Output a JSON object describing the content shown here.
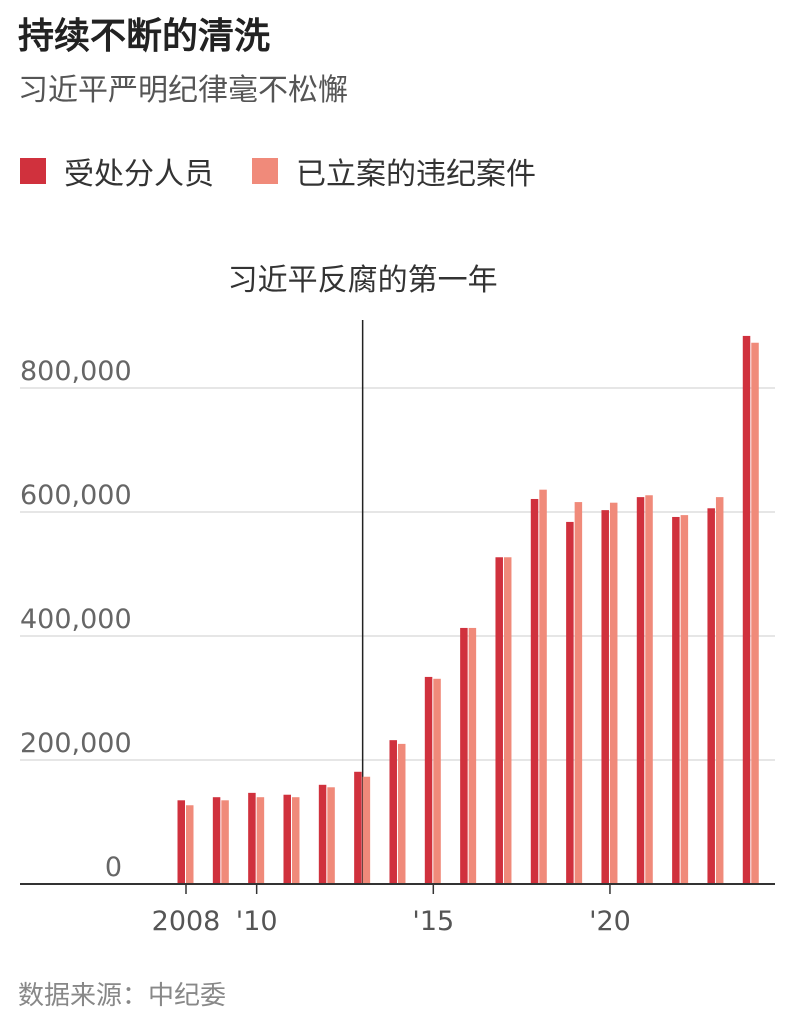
{
  "chart_data": {
    "type": "bar",
    "title": "持续不断的清洗",
    "subtitle": "习近平严明纪律毫不松懈",
    "annotation": "习近平反腐的第一年",
    "source": "数据来源：中纪委",
    "categories": [
      "2008",
      null,
      "'10",
      null,
      null,
      null,
      null,
      "'15",
      null,
      null,
      null,
      null,
      "'20",
      null,
      null,
      null,
      null
    ],
    "series": [
      {
        "name": "受处分人员",
        "color": "#d0313d",
        "values": [
          135000,
          140000,
          147000,
          144000,
          160000,
          181000,
          232000,
          334000,
          413000,
          527000,
          621000,
          584000,
          603000,
          624000,
          592000,
          606000,
          884000
        ]
      },
      {
        "name": "已立案的违纪案件",
        "color": "#f08a7a",
        "values": [
          127000,
          135000,
          140000,
          140000,
          156000,
          173000,
          226000,
          331000,
          413000,
          527000,
          636000,
          616000,
          615000,
          627000,
          595000,
          624000,
          873000
        ]
      }
    ],
    "ylim": [
      0,
      900000
    ],
    "yticks": [
      0,
      {
        "value": 200000,
        "label": "200,000"
      },
      {
        "value": 400000,
        "label": "400,000"
      },
      {
        "value": 600000,
        "label": "600,000"
      },
      {
        "value": 800000,
        "label": "800,000"
      }
    ],
    "grid": true
  }
}
